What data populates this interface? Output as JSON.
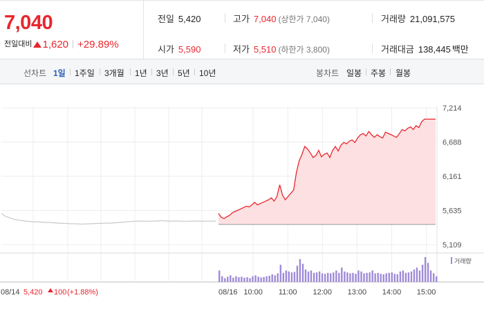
{
  "summary": {
    "price": "7,040",
    "change_label": "전일대비",
    "change_amount": "1,620",
    "change_pct": "+29.89%",
    "prev_close": {
      "label": "전일",
      "value": "5,420"
    },
    "high": {
      "label": "고가",
      "value": "7,040",
      "sub": "(상한가 7,040)"
    },
    "volume": {
      "label": "거래량",
      "value": "21,091,575"
    },
    "open": {
      "label": "시가",
      "value": "5,590"
    },
    "low": {
      "label": "저가",
      "value": "5,510",
      "sub": "(하한가 3,800)"
    },
    "amount": {
      "label": "거래대금",
      "value": "138,445",
      "unit": "백만"
    }
  },
  "periodbar": {
    "line_label": "선차트",
    "line_periods": [
      "1일",
      "1주일",
      "3개월",
      "1년",
      "3년",
      "5년",
      "10년"
    ],
    "line_active_index": 0,
    "candle_label": "봉차트",
    "candle_periods": [
      "일봉",
      "주봉",
      "월봉"
    ]
  },
  "colors": {
    "up": "#e8262d",
    "up_fill": "#fde0e1",
    "prev_line": "#c8c8c8",
    "volume": "#9e8ad8",
    "accent_blue": "#2b5eb7"
  },
  "footer": {
    "prev_date": "08/14",
    "prev_close": "5,420",
    "prev_change": "100",
    "prev_change_pct": "(+1.88%)",
    "cur_date": "08/16"
  },
  "chart_data": {
    "type": "line",
    "ylim": [
      5109,
      7214
    ],
    "y_ticks": [
      "7,214",
      "6,688",
      "6,161",
      "5,635",
      "5,109"
    ],
    "x_ticks": [
      "10:00",
      "11:00",
      "12:00",
      "13:00",
      "14:00",
      "15:00"
    ],
    "base_price": 5420,
    "volume_label": "거래량",
    "prev_day": {
      "date": "08/14",
      "points": [
        5590,
        5545,
        5525,
        5500,
        5490,
        5480,
        5470,
        5465,
        5460,
        5460,
        5455,
        5450,
        5450,
        5445,
        5440,
        5438,
        5435,
        5430,
        5430,
        5428,
        5425,
        5428,
        5430,
        5432,
        5435,
        5438,
        5440,
        5440,
        5445,
        5450,
        5455,
        5460,
        5465,
        5468,
        5470,
        5470,
        5468,
        5470,
        5472,
        5475,
        5478,
        5470,
        5470,
        5472,
        5470,
        5468,
        5468,
        5470,
        5470,
        5472,
        5470,
        5468,
        5470,
        5470
      ]
    },
    "today": {
      "date": "08/16",
      "x": [
        "09:00",
        "09:05",
        "09:10",
        "09:15",
        "09:20",
        "09:25",
        "09:30",
        "09:35",
        "09:40",
        "09:45",
        "09:50",
        "09:55",
        "10:00",
        "10:05",
        "10:10",
        "10:15",
        "10:20",
        "10:25",
        "10:30",
        "10:35",
        "10:40",
        "10:45",
        "10:50",
        "10:55",
        "11:00",
        "11:05",
        "11:10",
        "11:15",
        "11:20",
        "11:25",
        "11:30",
        "11:35",
        "11:40",
        "11:45",
        "11:50",
        "11:55",
        "12:00",
        "12:05",
        "12:10",
        "12:15",
        "12:20",
        "12:25",
        "12:30",
        "12:35",
        "12:40",
        "12:45",
        "12:50",
        "12:55",
        "13:00",
        "13:05",
        "13:10",
        "13:15",
        "13:20",
        "13:25",
        "13:30",
        "13:35",
        "13:40",
        "13:45",
        "13:50",
        "13:55",
        "14:00",
        "14:05",
        "14:10",
        "14:15",
        "14:20",
        "14:25",
        "14:30",
        "14:35",
        "14:40",
        "14:45",
        "14:50",
        "14:55",
        "15:00",
        "15:05",
        "15:10",
        "15:15",
        "15:20",
        "15:25",
        "15:30"
      ],
      "y": [
        5590,
        5530,
        5510,
        5540,
        5560,
        5600,
        5620,
        5640,
        5660,
        5680,
        5700,
        5690,
        5720,
        5760,
        5720,
        5740,
        5760,
        5780,
        5800,
        5830,
        5780,
        5850,
        6030,
        5870,
        5800,
        5850,
        5900,
        5950,
        6220,
        6400,
        6500,
        6620,
        6580,
        6520,
        6450,
        6480,
        6560,
        6460,
        6500,
        6520,
        6450,
        6560,
        6620,
        6550,
        6640,
        6680,
        6660,
        6700,
        6720,
        6680,
        6750,
        6800,
        6820,
        6780,
        6850,
        6800,
        6760,
        6800,
        6770,
        6750,
        6840,
        6820,
        6800,
        6780,
        6760,
        6820,
        6880,
        6860,
        6900,
        6920,
        6880,
        6940,
        6910,
        7000,
        7040,
        7040,
        7040,
        7040,
        7040
      ],
      "volume": [
        120,
        60,
        40,
        55,
        70,
        45,
        60,
        50,
        55,
        45,
        50,
        40,
        60,
        70,
        55,
        48,
        52,
        60,
        65,
        80,
        70,
        90,
        180,
        95,
        120,
        110,
        100,
        105,
        170,
        240,
        190,
        130,
        110,
        120,
        95,
        100,
        110,
        90,
        85,
        95,
        90,
        100,
        120,
        95,
        150,
        110,
        100,
        90,
        95,
        85,
        120,
        110,
        90,
        95,
        100,
        120,
        90,
        95,
        85,
        80,
        90,
        95,
        100,
        85,
        80,
        110,
        120,
        95,
        100,
        110,
        130,
        150,
        120,
        180,
        260,
        200,
        120,
        90,
        60
      ]
    }
  }
}
